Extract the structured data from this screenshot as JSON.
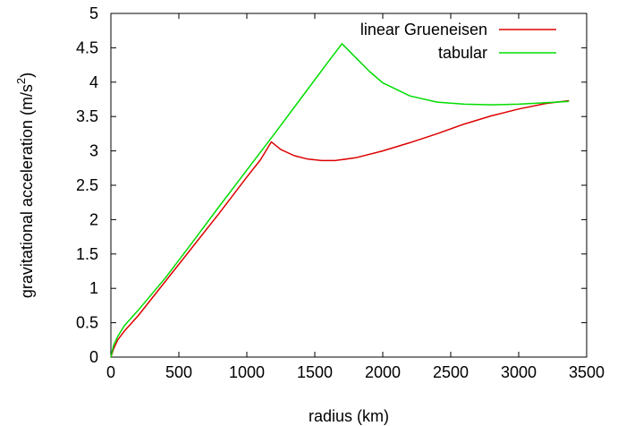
{
  "chart_data": {
    "type": "line",
    "title": "",
    "xlabel": "radius (km)",
    "ylabel_main": "gravitational acceleration (m/s",
    "ylabel_sup": "2",
    "ylabel_end": ")",
    "xlim": [
      0,
      3500
    ],
    "ylim": [
      0,
      5
    ],
    "xticks": [
      0,
      500,
      1000,
      1500,
      2000,
      2500,
      3000,
      3500
    ],
    "xtick_labels": [
      "0",
      "500",
      "1000",
      "1500",
      "2000",
      "2500",
      "3000",
      "3500"
    ],
    "yticks": [
      0,
      0.5,
      1,
      1.5,
      2,
      2.5,
      3,
      3.5,
      4,
      4.5,
      5
    ],
    "ytick_labels": [
      "0",
      "0.5",
      "1",
      "1.5",
      "2",
      "2.5",
      "3",
      "3.5",
      "4",
      "4.5",
      "5"
    ],
    "grid": false,
    "legend_position": "top-right",
    "series": [
      {
        "name": "linear Grueneisen",
        "color": "#dd0000",
        "x": [
          0,
          20,
          50,
          100,
          200,
          400,
          600,
          800,
          1000,
          1100,
          1180,
          1250,
          1350,
          1450,
          1550,
          1650,
          1800,
          2000,
          2200,
          2400,
          2600,
          2800,
          3000,
          3200,
          3370
        ],
        "y": [
          0,
          0.12,
          0.25,
          0.38,
          0.6,
          1.1,
          1.6,
          2.1,
          2.62,
          2.87,
          3.13,
          3.02,
          2.93,
          2.88,
          2.86,
          2.86,
          2.9,
          3.0,
          3.12,
          3.25,
          3.39,
          3.51,
          3.61,
          3.69,
          3.73
        ]
      },
      {
        "name": "tabular",
        "color": "#00dd00",
        "x": [
          0,
          20,
          50,
          100,
          200,
          400,
          600,
          800,
          1000,
          1200,
          1400,
          1600,
          1700,
          1800,
          1900,
          2000,
          2200,
          2400,
          2600,
          2800,
          3000,
          3200,
          3370
        ],
        "y": [
          0,
          0.17,
          0.3,
          0.46,
          0.68,
          1.15,
          1.67,
          2.2,
          2.72,
          3.24,
          3.77,
          4.3,
          4.56,
          4.36,
          4.16,
          3.99,
          3.8,
          3.71,
          3.68,
          3.67,
          3.68,
          3.7,
          3.72
        ]
      }
    ]
  }
}
